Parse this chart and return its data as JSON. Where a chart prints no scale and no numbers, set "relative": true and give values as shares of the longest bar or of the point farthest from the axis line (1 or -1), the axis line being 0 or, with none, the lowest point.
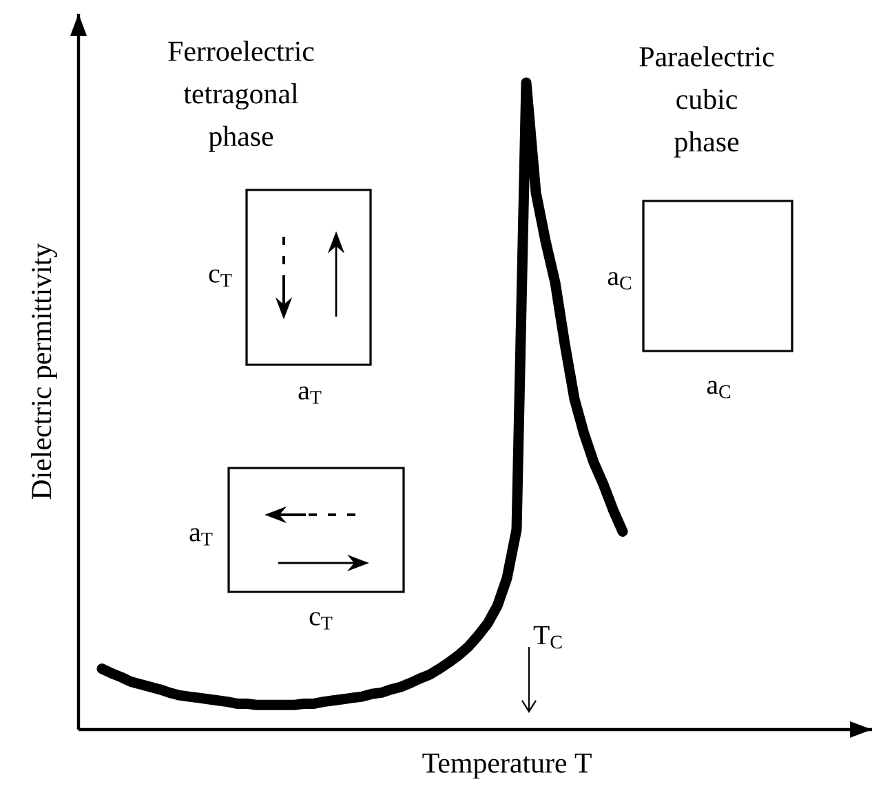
{
  "chart_data": {
    "type": "line",
    "relative": true,
    "xlabel": "Temperature T",
    "ylabel": "Dielectric permittivity",
    "marker": "none",
    "color": "#000000",
    "categories": [
      null,
      null,
      null,
      null,
      null,
      null,
      null,
      null,
      null,
      null,
      null,
      null,
      null,
      null,
      null,
      null,
      null,
      null,
      null,
      null,
      null,
      null,
      null,
      null,
      null,
      null,
      null,
      null,
      null,
      null,
      null,
      null,
      null,
      null,
      null,
      null,
      null,
      null,
      null,
      null,
      null,
      null,
      null,
      null,
      null,
      null,
      null,
      null,
      null,
      null,
      null,
      null,
      null,
      null,
      null
    ],
    "values": [
      0.094,
      0.087,
      0.081,
      0.074,
      0.07,
      0.066,
      0.062,
      0.057,
      0.053,
      0.051,
      0.049,
      0.047,
      0.045,
      0.043,
      0.04,
      0.04,
      0.038,
      0.038,
      0.038,
      0.038,
      0.038,
      0.04,
      0.04,
      0.043,
      0.045,
      0.047,
      0.049,
      0.051,
      0.055,
      0.057,
      0.062,
      0.066,
      0.072,
      0.079,
      0.085,
      0.094,
      0.104,
      0.115,
      0.128,
      0.145,
      0.164,
      0.191,
      0.234,
      0.309,
      1,
      0.83,
      0.755,
      0.691,
      0.596,
      0.511,
      0.457,
      0.413,
      0.379,
      0.34,
      0.306
    ],
    "annotations": [
      "Ferroelectric tetragonal phase",
      "Paraelectric cubic phase",
      "c$_{T}$",
      "a$_{T}$",
      "a$_{T}$",
      "c$_{T}$",
      "a$_{C}$",
      "a$_{C}$",
      "T$_{C}$"
    ]
  }
}
